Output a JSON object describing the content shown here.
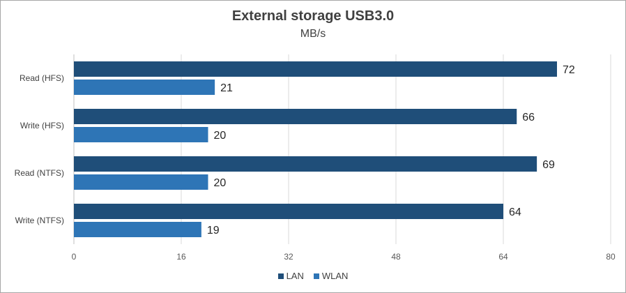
{
  "chart_data": {
    "type": "bar",
    "orientation": "horizontal",
    "title": "External storage USB3.0",
    "subtitle": "MB/s",
    "categories": [
      "Read (HFS)",
      "Write (HFS)",
      "Read (NTFS)",
      "Write (NTFS)"
    ],
    "series": [
      {
        "name": "LAN",
        "color": "#1f4e79",
        "values": [
          72,
          66,
          69,
          64
        ]
      },
      {
        "name": "WLAN",
        "color": "#2e75b6",
        "values": [
          21,
          20,
          20,
          19
        ]
      }
    ],
    "xlim": [
      0,
      80
    ],
    "xticks": [
      0,
      16,
      32,
      48,
      64,
      80
    ],
    "grid": true,
    "legend": "bottom"
  }
}
